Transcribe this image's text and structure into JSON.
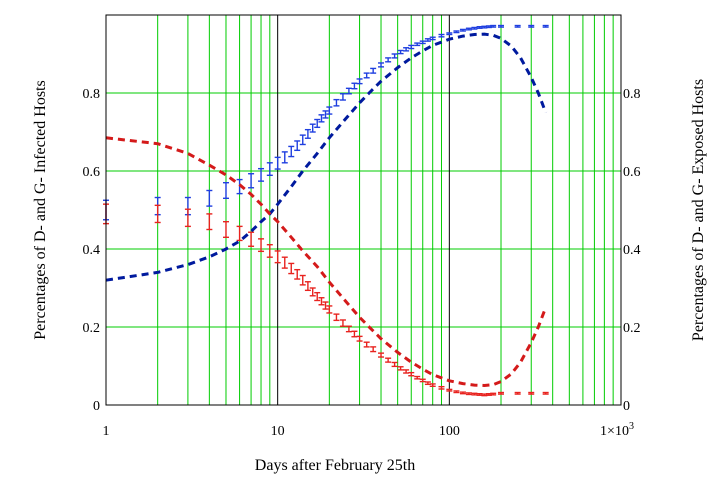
{
  "chart_data": {
    "type": "line",
    "xlabel": "Days after February 25th",
    "ylabel_left": "Percentages of D- and G- Infected Hosts",
    "ylabel_right": "Percentages of D- and G- Exposed Hosts",
    "x_scale": "log",
    "xlim": [
      1,
      1000
    ],
    "ylim": [
      0,
      1
    ],
    "x_ticks": [
      {
        "value": 1,
        "label": "1"
      },
      {
        "value": 10,
        "label": "10"
      },
      {
        "value": 100,
        "label": "100"
      }
    ],
    "x_tick_last": {
      "value": 1000,
      "base": "1×10",
      "exp": "3"
    },
    "y_ticks": [
      {
        "value": 0,
        "label": "0"
      },
      {
        "value": 0.2,
        "label": "0.2"
      },
      {
        "value": 0.4,
        "label": "0.4"
      },
      {
        "value": 0.6,
        "label": "0.6"
      },
      {
        "value": 0.8,
        "label": "0.8"
      }
    ],
    "grid": true,
    "grid_color": "#00cc00",
    "series": [
      {
        "style": "errorbar",
        "color": "#1f3fe0",
        "x": [
          1,
          2,
          3,
          4,
          5,
          6,
          7,
          8,
          9,
          10,
          11,
          12,
          13,
          14,
          15,
          16,
          17,
          18,
          19,
          20,
          22,
          24,
          26,
          28,
          30,
          33,
          36,
          40,
          44,
          48,
          52,
          56,
          60,
          65,
          70,
          75,
          80,
          90,
          100,
          110,
          120,
          130,
          140,
          150,
          160,
          170,
          180,
          200,
          250,
          300,
          364
        ],
        "y": [
          0.5,
          0.51,
          0.51,
          0.53,
          0.55,
          0.56,
          0.575,
          0.59,
          0.605,
          0.62,
          0.635,
          0.65,
          0.665,
          0.68,
          0.695,
          0.71,
          0.722,
          0.735,
          0.745,
          0.755,
          0.775,
          0.79,
          0.805,
          0.818,
          0.83,
          0.845,
          0.857,
          0.872,
          0.885,
          0.895,
          0.905,
          0.912,
          0.918,
          0.925,
          0.93,
          0.936,
          0.94,
          0.947,
          0.952,
          0.957,
          0.961,
          0.964,
          0.966,
          0.968,
          0.969,
          0.97,
          0.971,
          0.971,
          0.971,
          0.971,
          0.971
        ],
        "err": [
          0.025,
          0.022,
          0.022,
          0.02,
          0.02,
          0.018,
          0.018,
          0.016,
          0.016,
          0.015,
          0.014,
          0.013,
          0.012,
          0.012,
          0.011,
          0.01,
          0.01,
          0.009,
          0.009,
          0.009,
          0.008,
          0.008,
          0.007,
          0.007,
          0.006,
          0.006,
          0.006,
          0.005,
          0.005,
          0.005,
          0.004,
          0.004,
          0.004,
          0.003,
          0.003,
          0.003,
          0.003,
          0.003,
          0.002,
          0.002,
          0.002,
          0.002,
          0.002,
          0.002,
          0.002,
          0.002,
          0.002,
          0.002,
          0.002,
          0.002,
          0.002
        ]
      },
      {
        "style": "errorbar",
        "color": "#e8231f",
        "x": [
          1,
          2,
          3,
          4,
          5,
          6,
          7,
          8,
          9,
          10,
          11,
          12,
          13,
          14,
          15,
          16,
          17,
          18,
          19,
          20,
          22,
          24,
          26,
          28,
          30,
          33,
          36,
          40,
          44,
          48,
          52,
          56,
          60,
          65,
          70,
          75,
          80,
          90,
          100,
          110,
          120,
          130,
          140,
          150,
          160,
          170,
          180,
          200,
          250,
          300,
          364
        ],
        "y": [
          0.49,
          0.49,
          0.48,
          0.47,
          0.45,
          0.44,
          0.425,
          0.41,
          0.395,
          0.38,
          0.365,
          0.35,
          0.335,
          0.32,
          0.305,
          0.29,
          0.278,
          0.266,
          0.255,
          0.245,
          0.225,
          0.21,
          0.195,
          0.182,
          0.17,
          0.155,
          0.143,
          0.128,
          0.115,
          0.104,
          0.094,
          0.086,
          0.079,
          0.07,
          0.063,
          0.056,
          0.051,
          0.044,
          0.038,
          0.034,
          0.031,
          0.029,
          0.028,
          0.027,
          0.026,
          0.027,
          0.028,
          0.03,
          0.03,
          0.03,
          0.03
        ],
        "err": [
          0.025,
          0.022,
          0.022,
          0.02,
          0.02,
          0.018,
          0.018,
          0.016,
          0.016,
          0.015,
          0.014,
          0.013,
          0.012,
          0.012,
          0.011,
          0.01,
          0.01,
          0.009,
          0.009,
          0.009,
          0.008,
          0.008,
          0.007,
          0.007,
          0.006,
          0.006,
          0.006,
          0.005,
          0.005,
          0.005,
          0.004,
          0.004,
          0.004,
          0.003,
          0.003,
          0.003,
          0.003,
          0.003,
          0.002,
          0.002,
          0.002,
          0.002,
          0.002,
          0.002,
          0.002,
          0.002,
          0.002,
          0.002,
          0.002,
          0.002,
          0.002
        ]
      },
      {
        "style": "dashed",
        "color": "#001a9e",
        "x": [
          1,
          2,
          3,
          4,
          5,
          6,
          7,
          8,
          9,
          10,
          12,
          14,
          17,
          20,
          25,
          30,
          35,
          40,
          50,
          60,
          70,
          80,
          100,
          120,
          140,
          160,
          180,
          200,
          230,
          260,
          300,
          330,
          364
        ],
        "y": [
          0.32,
          0.34,
          0.36,
          0.38,
          0.4,
          0.42,
          0.445,
          0.47,
          0.49,
          0.515,
          0.56,
          0.6,
          0.645,
          0.685,
          0.735,
          0.775,
          0.805,
          0.83,
          0.865,
          0.89,
          0.908,
          0.922,
          0.938,
          0.946,
          0.95,
          0.951,
          0.948,
          0.94,
          0.92,
          0.89,
          0.84,
          0.8,
          0.75
        ]
      },
      {
        "style": "dashed",
        "color": "#d41a1a",
        "x": [
          1,
          2,
          3,
          4,
          5,
          6,
          7,
          8,
          9,
          10,
          12,
          14,
          17,
          20,
          25,
          30,
          35,
          40,
          50,
          60,
          70,
          80,
          100,
          120,
          140,
          160,
          180,
          200,
          230,
          260,
          300,
          330,
          364
        ],
        "y": [
          0.685,
          0.67,
          0.645,
          0.615,
          0.59,
          0.565,
          0.54,
          0.515,
          0.49,
          0.47,
          0.43,
          0.395,
          0.355,
          0.315,
          0.265,
          0.225,
          0.195,
          0.17,
          0.135,
          0.11,
          0.092,
          0.078,
          0.062,
          0.055,
          0.051,
          0.05,
          0.052,
          0.06,
          0.08,
          0.11,
          0.16,
          0.2,
          0.25
        ]
      }
    ]
  }
}
